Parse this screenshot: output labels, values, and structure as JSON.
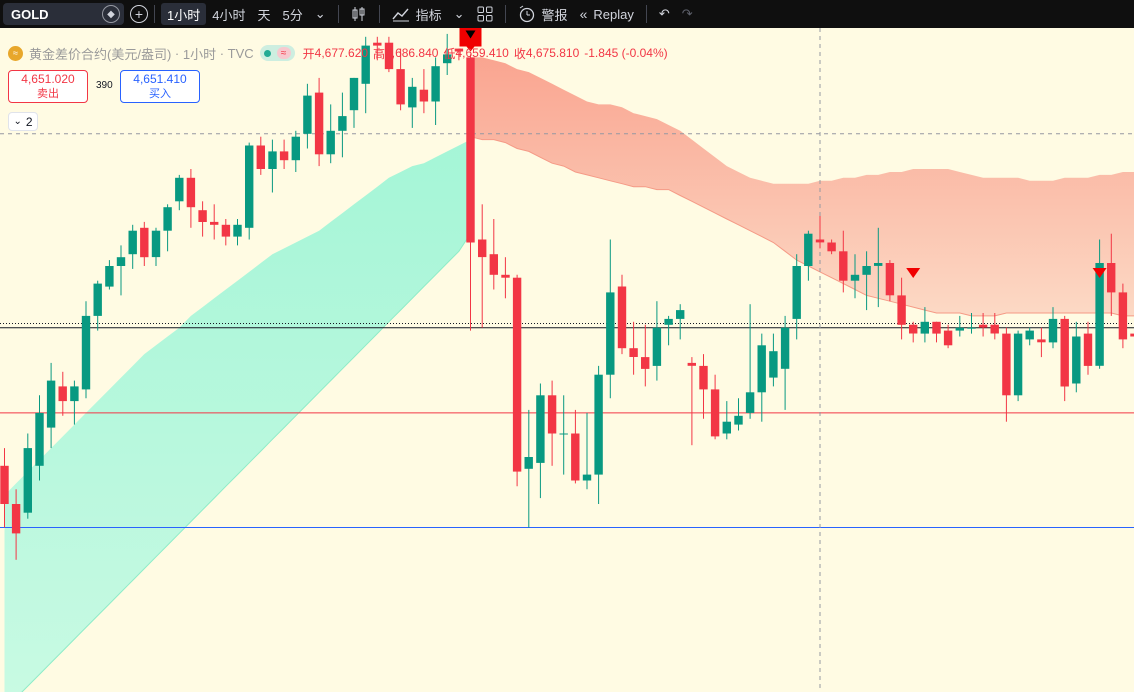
{
  "toolbar": {
    "symbol": "GOLD",
    "timeframes": [
      "1小时",
      "4小时",
      "天",
      "5分"
    ],
    "active_timeframe": "1小时",
    "indicators_label": "指标",
    "alert_label": "警报",
    "replay_label": "Replay"
  },
  "legend": {
    "title": "黄金差价合约(美元/盎司)",
    "interval": "1小时",
    "source": "TVC",
    "open_label": "开",
    "open": "4,677.620",
    "high_label": "高",
    "high": "4,686.840",
    "low_label": "低",
    "low": "4,659.410",
    "close_label": "收",
    "close": "4,675.810",
    "change": "-1.845 (-0.04%)"
  },
  "trade": {
    "sell_price": "4,651.020",
    "sell_label": "卖出",
    "spread": "390",
    "buy_price": "4,651.410",
    "buy_label": "买入"
  },
  "indicators_collapsed_count": "2",
  "colors": {
    "up": "#089981",
    "down": "#f23645",
    "background": "#fffbe3",
    "band_bear": "#f9a08c",
    "band_bull": "#9df3d2"
  },
  "chart_data": {
    "type": "candlestick",
    "ylim": [
      4526,
      4752
    ],
    "grid": false,
    "candles": [
      [
        4603,
        4609,
        4582,
        4590
      ],
      [
        4590,
        4595,
        4571,
        4580
      ],
      [
        4587,
        4614,
        4585,
        4609
      ],
      [
        4603,
        4627,
        4598,
        4621
      ],
      [
        4616,
        4638,
        4609,
        4632
      ],
      [
        4630,
        4635,
        4620,
        4625
      ],
      [
        4625,
        4632,
        4617,
        4630
      ],
      [
        4629,
        4659,
        4626,
        4654
      ],
      [
        4654,
        4666,
        4649,
        4665
      ],
      [
        4664,
        4673,
        4663,
        4671
      ],
      [
        4671,
        4678,
        4661,
        4674
      ],
      [
        4675,
        4685,
        4670,
        4683
      ],
      [
        4684,
        4686,
        4671,
        4674
      ],
      [
        4674,
        4684,
        4671,
        4683
      ],
      [
        4683,
        4692,
        4676,
        4691
      ],
      [
        4693,
        4702,
        4690,
        4701
      ],
      [
        4701,
        4704,
        4684,
        4691
      ],
      [
        4690,
        4693,
        4681,
        4686
      ],
      [
        4686,
        4692,
        4680,
        4685
      ],
      [
        4685,
        4687,
        4678,
        4681
      ],
      [
        4681,
        4687,
        4678,
        4685
      ],
      [
        4684,
        4713,
        4680,
        4712
      ],
      [
        4712,
        4715,
        4702,
        4704
      ],
      [
        4704,
        4714,
        4696,
        4710
      ],
      [
        4710,
        4714,
        4704,
        4707
      ],
      [
        4707,
        4717,
        4703,
        4715
      ],
      [
        4716,
        4733,
        4711,
        4729
      ],
      [
        4730,
        4735,
        4705,
        4709
      ],
      [
        4709,
        4726,
        4706,
        4717
      ],
      [
        4717,
        4730,
        4708,
        4722
      ],
      [
        4724,
        4735,
        4718,
        4735
      ],
      [
        4733,
        4749,
        4723,
        4746
      ],
      [
        4747,
        4749,
        4741,
        4746
      ],
      [
        4747,
        4749,
        4737,
        4738
      ],
      [
        4738,
        4745,
        4724,
        4726
      ],
      [
        4725,
        4735,
        4718,
        4732
      ],
      [
        4731,
        4738,
        4723,
        4727
      ],
      [
        4727,
        4742,
        4719,
        4739
      ],
      [
        4740,
        4750,
        4736,
        4743
      ],
      [
        4745,
        4745,
        4741,
        4744
      ],
      [
        4742,
        4743,
        4649,
        4679
      ],
      [
        4680,
        4692,
        4650,
        4674
      ],
      [
        4675,
        4687,
        4663,
        4668
      ],
      [
        4668,
        4674,
        4660,
        4667
      ],
      [
        4667,
        4668,
        4596,
        4601
      ],
      [
        4602,
        4622,
        4582,
        4606
      ],
      [
        4604,
        4631,
        4592,
        4627
      ],
      [
        4627,
        4632,
        4603,
        4614
      ],
      [
        4614,
        4627,
        4600,
        4614
      ],
      [
        4614,
        4622,
        4597,
        4598
      ],
      [
        4598,
        4621,
        4595,
        4600
      ],
      [
        4600,
        4637,
        4590,
        4634
      ],
      [
        4634,
        4680,
        4626,
        4662
      ],
      [
        4664,
        4668,
        4641,
        4643
      ],
      [
        4643,
        4652,
        4634,
        4640
      ],
      [
        4640,
        4651,
        4630,
        4636
      ],
      [
        4637,
        4659,
        4632,
        4650
      ],
      [
        4651,
        4654,
        4644,
        4653
      ],
      [
        4653,
        4658,
        4646,
        4656
      ],
      [
        4638,
        4640,
        4610,
        4637
      ],
      [
        4637,
        4641,
        4619,
        4629
      ],
      [
        4629,
        4634,
        4612,
        4613
      ],
      [
        4614,
        4625,
        4612,
        4618
      ],
      [
        4617,
        4626,
        4615,
        4620
      ],
      [
        4621,
        4658,
        4619,
        4628
      ],
      [
        4628,
        4648,
        4618,
        4644
      ],
      [
        4633,
        4648,
        4630,
        4642
      ],
      [
        4636,
        4654,
        4622,
        4650
      ],
      [
        4653,
        4675,
        4646,
        4671
      ],
      [
        4671,
        4683,
        4666,
        4682
      ],
      [
        4680,
        4688,
        4677,
        4679
      ],
      [
        4679,
        4680,
        4675,
        4676
      ],
      [
        4676,
        4683,
        4662,
        4666
      ],
      [
        4666,
        4675,
        4660,
        4668
      ],
      [
        4668,
        4676,
        4656,
        4671
      ],
      [
        4671,
        4684,
        4657,
        4672
      ],
      [
        4672,
        4673,
        4659,
        4661
      ],
      [
        4661,
        4667,
        4646,
        4651
      ],
      [
        4651,
        4652,
        4645,
        4648
      ],
      [
        4648,
        4657,
        4645,
        4652
      ],
      [
        4652,
        4652,
        4645,
        4648
      ],
      [
        4649,
        4651,
        4643,
        4644
      ],
      [
        4649,
        4654,
        4647,
        4650
      ],
      [
        4650,
        4655,
        4648,
        4650
      ],
      [
        4651,
        4655,
        4647,
        4650
      ],
      [
        4651,
        4655,
        4646,
        4648
      ],
      [
        4648,
        4650,
        4618,
        4627
      ],
      [
        4627,
        4649,
        4625,
        4648
      ],
      [
        4646,
        4650,
        4644,
        4649
      ],
      [
        4646,
        4650,
        4640,
        4645
      ],
      [
        4645,
        4657,
        4643,
        4653
      ],
      [
        4653,
        4654,
        4625,
        4630
      ],
      [
        4631,
        4652,
        4628,
        4647
      ],
      [
        4648,
        4652,
        4634,
        4637
      ],
      [
        4637,
        4680,
        4636,
        4672
      ],
      [
        4672,
        4682,
        4654,
        4662
      ],
      [
        4662,
        4665,
        4643,
        4646
      ],
      [
        4648,
        4650,
        4637,
        4647
      ]
    ],
    "bear_band": {
      "start_index": 40,
      "upper": [
        4742,
        4742,
        4741,
        4740,
        4738,
        4737,
        4735,
        4733,
        4731,
        4729,
        4727,
        4726,
        4726,
        4725,
        4723,
        4722,
        4721,
        4719,
        4717,
        4714,
        4711,
        4708,
        4705,
        4703,
        4701,
        4700,
        4699,
        4699,
        4699,
        4699,
        4700,
        4700,
        4701,
        4701,
        4702,
        4702,
        4703,
        4703,
        4704,
        4704,
        4704,
        4704,
        4703,
        4702,
        4701,
        4701,
        4701,
        4701,
        4700,
        4700,
        4700,
        4701,
        4701,
        4701,
        4702,
        4702,
        4703,
        4703,
        4704
      ],
      "lower": [
        4715,
        4714,
        4714,
        4713,
        4711,
        4710,
        4708,
        4706,
        4705,
        4703,
        4702,
        4701,
        4700,
        4699,
        4698,
        4698,
        4697,
        4697,
        4695,
        4693,
        4691,
        4689,
        4687,
        4685,
        4683,
        4681,
        4679,
        4676,
        4673,
        4671,
        4669,
        4667,
        4665,
        4663,
        4661,
        4660,
        4659,
        4658,
        4657,
        4656,
        4655,
        4655,
        4655,
        4654,
        4654,
        4654,
        4655,
        4655,
        4655,
        4655,
        4655,
        4655,
        4655,
        4655,
        4655,
        4655,
        4654,
        4654,
        4653
      ]
    },
    "bull_band": {
      "start_index": 0,
      "upper": [
        4593,
        4597,
        4601,
        4605,
        4609,
        4613,
        4617,
        4621,
        4625,
        4629,
        4633,
        4637,
        4641,
        4644,
        4647,
        4650,
        4654,
        4657,
        4660,
        4663,
        4666,
        4669,
        4672,
        4675,
        4677,
        4679,
        4681,
        4683,
        4686,
        4689,
        4692,
        4695,
        4698,
        4701,
        4703,
        4705,
        4706,
        4708,
        4710,
        4712,
        4714
      ],
      "lower": [
        4520,
        4524,
        4528,
        4532,
        4536,
        4540,
        4544,
        4548,
        4552,
        4556,
        4560,
        4564,
        4568,
        4572,
        4576,
        4580,
        4584,
        4588,
        4592,
        4596,
        4600,
        4604,
        4608,
        4612,
        4616,
        4620,
        4624,
        4628,
        4632,
        4636,
        4640,
        4644,
        4648,
        4652,
        4656,
        4660,
        4664,
        4668,
        4672,
        4676,
        4682
      ]
    },
    "signals": [
      {
        "type": "sell-flag",
        "index": 40
      },
      {
        "type": "sell-arrow",
        "index": 78
      },
      {
        "type": "sell-arrow",
        "index": 94
      }
    ],
    "horizontal_lines": [
      {
        "price": 4650,
        "color": "#131722",
        "style": "solid"
      },
      {
        "price": 4651.41,
        "color": "#131722",
        "style": "dotted"
      },
      {
        "price": 4716,
        "color": "#9598a1",
        "style": "dashed"
      },
      {
        "price": 4621,
        "color": "#f23645",
        "style": "solid"
      },
      {
        "price": 4582,
        "color": "#2962ff",
        "style": "solid"
      }
    ],
    "crosshair_index": 70
  }
}
